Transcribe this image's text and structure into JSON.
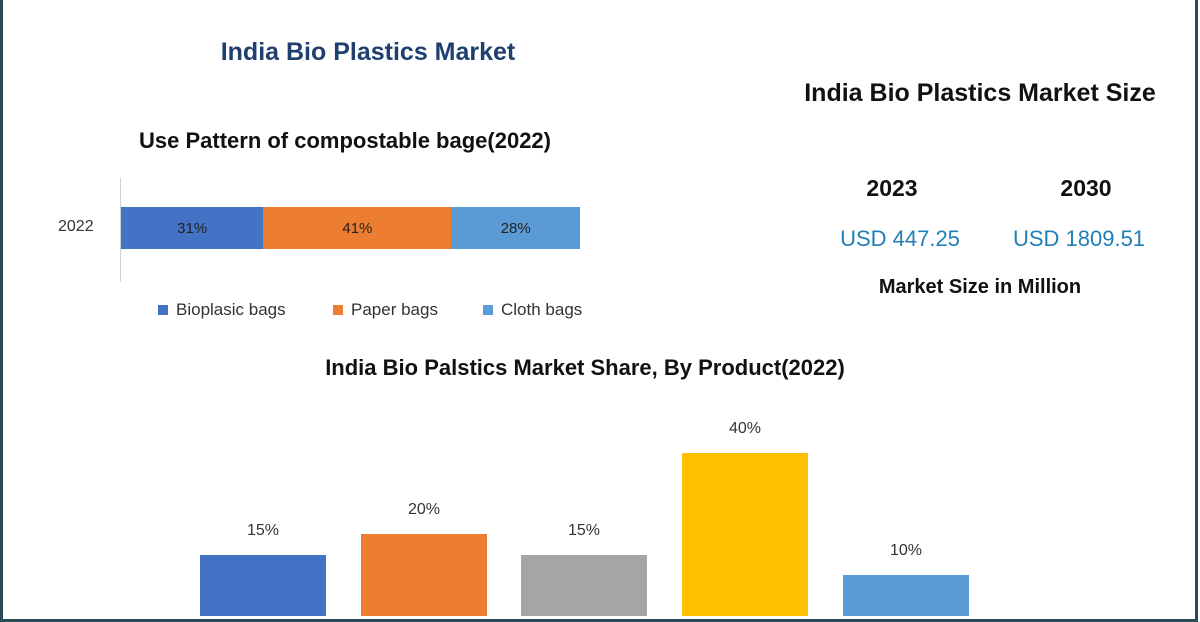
{
  "header": {
    "title": "India Bio Plastics Market"
  },
  "market_size": {
    "title": "India Bio Plastics Market Size",
    "years": [
      {
        "year": "2023",
        "value": "USD 447.25"
      },
      {
        "year": "2030",
        "value": "USD 1809.51"
      }
    ],
    "unit": "Market Size in Million"
  },
  "chart_data": [
    {
      "type": "bar",
      "orientation": "horizontal-stacked",
      "title": "Use Pattern of compostable bage(2022)",
      "categories": [
        "2022"
      ],
      "series": [
        {
          "name": "Bioplasic bags",
          "values": [
            31
          ],
          "label": "31%",
          "color": "#4472c4"
        },
        {
          "name": "Paper bags",
          "values": [
            41
          ],
          "label": "41%",
          "color": "#ed7d31"
        },
        {
          "name": "Cloth bags",
          "values": [
            28
          ],
          "label": "28%",
          "color": "#5b9bd5"
        }
      ],
      "legend": "bottom",
      "grid": false
    },
    {
      "type": "bar",
      "title": "India Bio Palstics Market Share, By Product(2022)",
      "values": [
        15,
        20,
        15,
        40,
        10
      ],
      "labels": [
        "15%",
        "20%",
        "15%",
        "40%",
        "10%"
      ],
      "colors": [
        "#4472c4",
        "#ed7d31",
        "#a5a5a5",
        "#ffc000",
        "#5b9bd5"
      ],
      "grid": false
    }
  ]
}
